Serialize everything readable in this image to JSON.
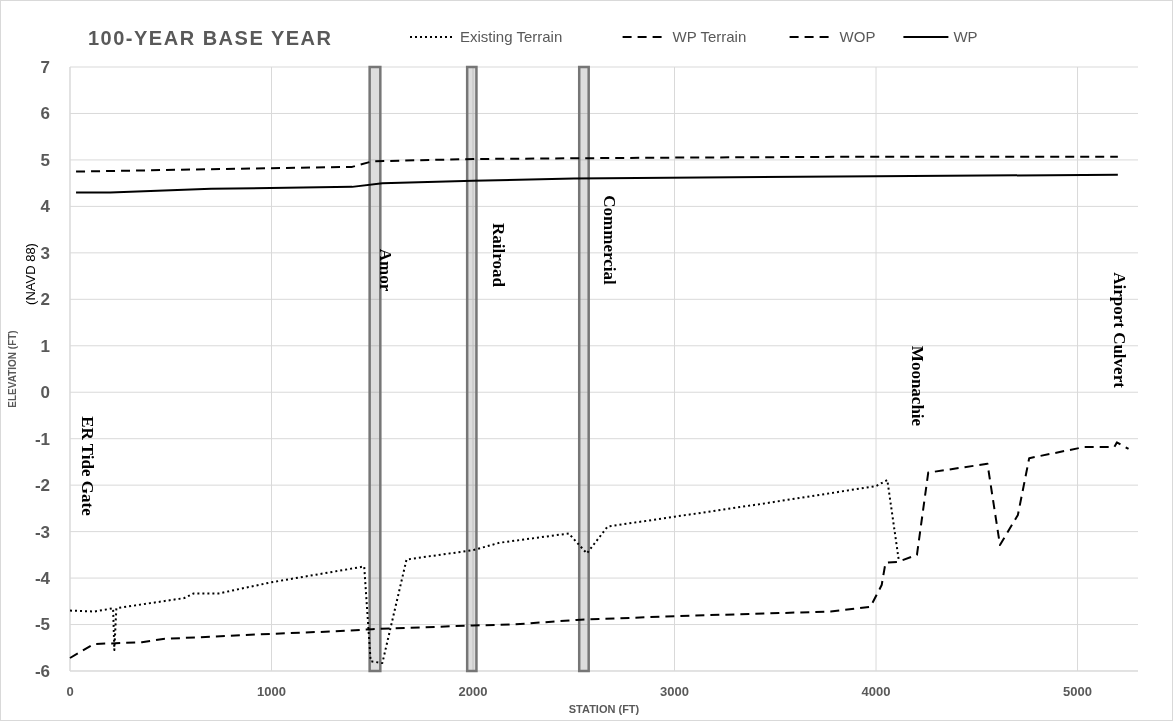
{
  "chart_data": {
    "type": "line",
    "title": "100-YEAR BASE YEAR",
    "xlabel": "STATION (FT)",
    "ylabel": "ELEVATION (FT)",
    "xlim": [
      0,
      5300
    ],
    "xticks": [
      0,
      1000,
      2000,
      3000,
      4000,
      5000
    ],
    "ylim": [
      -6,
      7
    ],
    "yticks": [
      -6,
      -5,
      -4,
      -3,
      -2,
      -1,
      0,
      1,
      2,
      3,
      4,
      5,
      6,
      7
    ],
    "grid": true,
    "legend": "top",
    "series": [
      {
        "name": "Existing Terrain",
        "color": "#000000",
        "line_style": "dotted",
        "x": [
          0,
          120,
          214,
          220,
          230,
          567,
          614,
          738,
          1000,
          1460,
          1492,
          1550,
          1670,
          2000,
          2131,
          2475,
          2565,
          2668,
          3000,
          3437,
          4000,
          4056,
          4113
        ],
        "values": [
          -4.7,
          -4.72,
          -4.65,
          -5.55,
          -4.65,
          -4.43,
          -4.33,
          -4.33,
          -4.09,
          -3.75,
          -5.79,
          -5.83,
          -3.6,
          -3.4,
          -3.24,
          -3.04,
          -3.47,
          -2.89,
          -2.68,
          -2.4,
          -2.02,
          -1.89,
          -3.62
        ]
      },
      {
        "name": "WP Terrain",
        "color": "#000000",
        "line_style": "dashed",
        "x": [
          0,
          118,
          357,
          462,
          1000,
          1292,
          1500,
          2000,
          2200,
          2513,
          3000,
          3775,
          3972,
          4028,
          4047,
          4110,
          4203,
          4259,
          4553,
          4615,
          4704,
          4760,
          5032,
          5182,
          5195,
          5253
        ],
        "values": [
          -5.72,
          -5.42,
          -5.38,
          -5.31,
          -5.2,
          -5.15,
          -5.1,
          -5.02,
          -5.0,
          -4.9,
          -4.82,
          -4.72,
          -4.62,
          -4.15,
          -3.67,
          -3.65,
          -3.5,
          -1.73,
          -1.54,
          -3.29,
          -2.64,
          -1.42,
          -1.18,
          -1.18,
          -1.08,
          -1.22
        ]
      },
      {
        "name": "WOP",
        "color": "#000000",
        "line_style": "dashed",
        "x": [
          30,
          1400,
          1500,
          2000,
          3000,
          4000,
          5200
        ],
        "values": [
          4.75,
          4.85,
          4.97,
          5.02,
          5.05,
          5.07,
          5.07
        ]
      },
      {
        "name": "WP",
        "color": "#000000",
        "line_style": "solid",
        "x": [
          30,
          200,
          700,
          1400,
          1550,
          2000,
          2500,
          4000,
          5200
        ],
        "values": [
          4.3,
          4.3,
          4.38,
          4.42,
          4.5,
          4.55,
          4.6,
          4.65,
          4.68
        ]
      }
    ],
    "bands": [
      {
        "axis": "x",
        "from": 1487,
        "to": 1540,
        "color": "#767676"
      },
      {
        "axis": "x",
        "from": 1971,
        "to": 2017,
        "color": "#767676"
      },
      {
        "axis": "x",
        "from": 2527,
        "to": 2574,
        "color": "#767676"
      }
    ],
    "annotations": [
      "(NAVD 88)",
      "ER Tide Gate",
      "Amor",
      "Railroad",
      "Commercial",
      "Moonachie",
      "Airport Culvert"
    ]
  }
}
